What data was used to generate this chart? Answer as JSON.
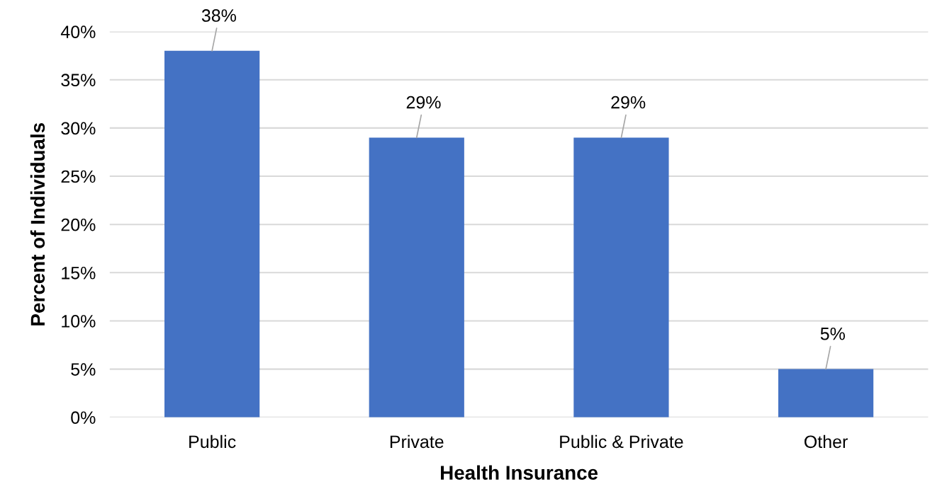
{
  "chart_data": {
    "type": "bar",
    "xlabel": "Health Insurance",
    "ylabel": "Percent of Individuals",
    "categories": [
      "Public",
      "Private",
      "Public & Private",
      "Other"
    ],
    "values": [
      38,
      29,
      29,
      5
    ],
    "color": "#4472c4",
    "value_labels": [
      "38%",
      "29%",
      "29%",
      "5%"
    ],
    "ylim": [
      0,
      40
    ],
    "yticks": [
      {
        "value": 0,
        "label": "0%"
      },
      {
        "value": 5,
        "label": "5%"
      },
      {
        "value": 10,
        "label": "10%"
      },
      {
        "value": 15,
        "label": "15%"
      },
      {
        "value": 20,
        "label": "20%"
      },
      {
        "value": 25,
        "label": "25%"
      },
      {
        "value": 30,
        "label": "30%"
      },
      {
        "value": 35,
        "label": "35%"
      },
      {
        "value": 40,
        "label": "40%"
      }
    ],
    "grid": "y",
    "legend": false
  }
}
